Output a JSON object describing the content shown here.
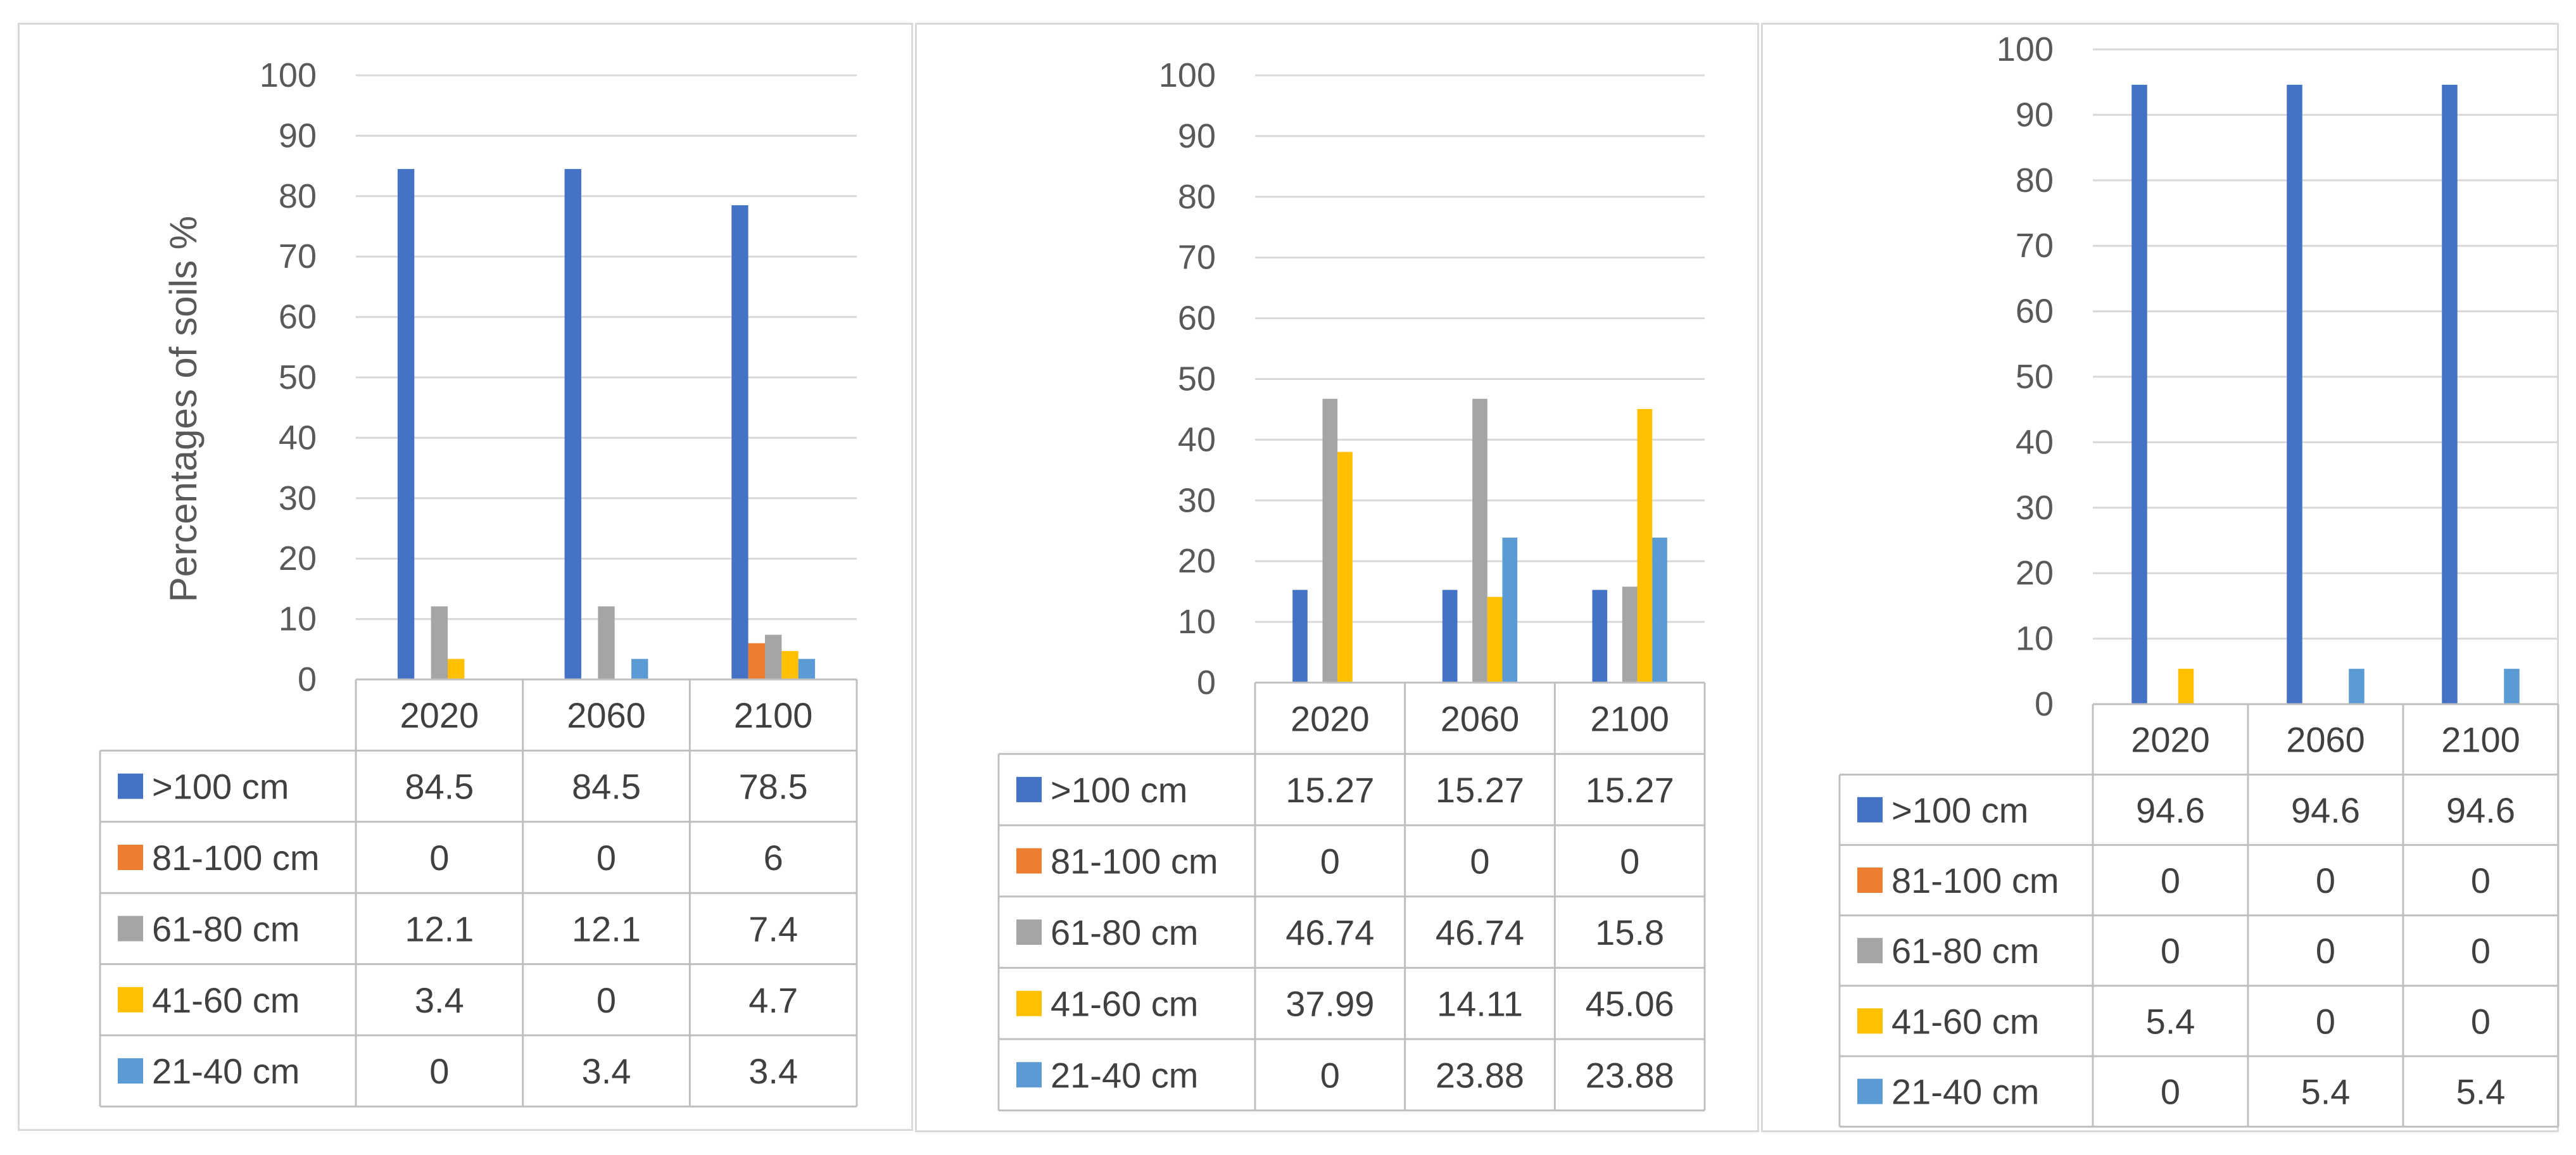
{
  "series_names": [
    ">100 cm",
    "81-100 cm",
    "61-80 cm",
    "41-60 cm",
    "21-40 cm"
  ],
  "colors": [
    "#4472C4",
    "#ED7D31",
    "#A5A5A5",
    "#FFC000",
    "#5B9BD5"
  ],
  "chart_data": [
    {
      "type": "bar",
      "ylabel": "Percentages of soils  %",
      "ylim": [
        0,
        100
      ],
      "yticks": [
        "0",
        "10",
        "20",
        "30",
        "40",
        "50",
        "60",
        "70",
        "80",
        "90",
        "100"
      ],
      "categories": [
        "2020",
        "2060",
        "2100"
      ],
      "series": [
        {
          "name": ">100 cm",
          "values": [
            84.5,
            84.5,
            78.5
          ],
          "labels": [
            "84.5",
            "84.5",
            "78.5"
          ]
        },
        {
          "name": "81-100 cm",
          "values": [
            0,
            0,
            6
          ],
          "labels": [
            "0",
            "0",
            "6"
          ]
        },
        {
          "name": "61-80 cm",
          "values": [
            12.1,
            12.1,
            7.4
          ],
          "labels": [
            "12.1",
            "12.1",
            "7.4"
          ]
        },
        {
          "name": "41-60 cm",
          "values": [
            3.4,
            0,
            4.7
          ],
          "labels": [
            "3.4",
            "0",
            "4.7"
          ]
        },
        {
          "name": "21-40 cm",
          "values": [
            0,
            3.4,
            3.4
          ],
          "labels": [
            "0",
            "3.4",
            "3.4"
          ]
        }
      ]
    },
    {
      "type": "bar",
      "ylabel": "",
      "ylim": [
        0,
        100
      ],
      "yticks": [
        "0",
        "10",
        "20",
        "30",
        "40",
        "50",
        "60",
        "70",
        "80",
        "90",
        "100"
      ],
      "categories": [
        "2020",
        "2060",
        "2100"
      ],
      "series": [
        {
          "name": ">100 cm",
          "values": [
            15.27,
            15.27,
            15.27
          ],
          "labels": [
            "15.27",
            "15.27",
            "15.27"
          ]
        },
        {
          "name": "81-100 cm",
          "values": [
            0,
            0,
            0
          ],
          "labels": [
            "0",
            "0",
            "0"
          ]
        },
        {
          "name": "61-80 cm",
          "values": [
            46.74,
            46.74,
            15.8
          ],
          "labels": [
            "46.74",
            "46.74",
            "15.8"
          ]
        },
        {
          "name": "41-60 cm",
          "values": [
            37.99,
            14.11,
            45.06
          ],
          "labels": [
            "37.99",
            "14.11",
            "45.06"
          ]
        },
        {
          "name": "21-40 cm",
          "values": [
            0,
            23.88,
            23.88
          ],
          "labels": [
            "0",
            "23.88",
            "23.88"
          ]
        }
      ]
    },
    {
      "type": "bar",
      "ylabel": "",
      "ylim": [
        0,
        100
      ],
      "yticks": [
        "0",
        "10",
        "20",
        "30",
        "40",
        "50",
        "60",
        "70",
        "80",
        "90",
        "100"
      ],
      "categories": [
        "2020",
        "2060",
        "2100"
      ],
      "series": [
        {
          "name": ">100 cm",
          "values": [
            94.6,
            94.6,
            94.6
          ],
          "labels": [
            "94.6",
            "94.6",
            "94.6"
          ]
        },
        {
          "name": "81-100 cm",
          "values": [
            0,
            0,
            0
          ],
          "labels": [
            "0",
            "0",
            "0"
          ]
        },
        {
          "name": "61-80 cm",
          "values": [
            0,
            0,
            0
          ],
          "labels": [
            "0",
            "0",
            "0"
          ]
        },
        {
          "name": "41-60 cm",
          "values": [
            5.4,
            0,
            0
          ],
          "labels": [
            "5.4",
            "0",
            "0"
          ]
        },
        {
          "name": "21-40 cm",
          "values": [
            0,
            5.4,
            5.4
          ],
          "labels": [
            "0",
            "5.4",
            "5.4"
          ]
        }
      ]
    }
  ]
}
